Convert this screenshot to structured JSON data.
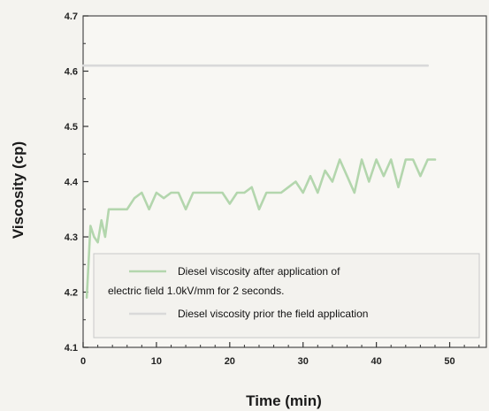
{
  "chart_data": {
    "type": "line",
    "xlabel": "Time (min)",
    "ylabel": "Viscosity (cp)",
    "xlim": [
      0,
      55
    ],
    "ylim": [
      4.1,
      4.7
    ],
    "xticks": [
      0,
      10,
      20,
      30,
      40,
      50
    ],
    "yticks": [
      4.1,
      4.2,
      4.3,
      4.4,
      4.5,
      4.6,
      4.7
    ],
    "xtick_labels": [
      "0",
      "10",
      "20",
      "30",
      "40",
      "50"
    ],
    "ytick_labels": [
      "4.1",
      "4.2",
      "4.3",
      "4.4",
      "4.5",
      "4.6",
      "4.7"
    ],
    "grid": false,
    "legend_position": "bottom-left",
    "series": [
      {
        "name": "Diesel viscosity after application of electric field 1.0kV/mm for 2 seconds",
        "legend_lines": [
          "Diesel viscosity after application of",
          "electric field 1.0kV/mm for 2 seconds."
        ],
        "color": "#b3d6ad",
        "x": [
          0.5,
          1,
          1.5,
          2,
          2.5,
          3,
          3.5,
          4,
          5,
          6,
          7,
          8,
          9,
          10,
          11,
          12,
          13,
          14,
          15,
          16,
          17,
          18,
          19,
          20,
          21,
          22,
          23,
          24,
          25,
          26,
          27,
          28,
          29,
          30,
          31,
          32,
          33,
          34,
          35,
          36,
          37,
          38,
          39,
          40,
          41,
          42,
          43,
          44,
          45,
          46,
          47,
          48
        ],
        "y": [
          4.19,
          4.32,
          4.3,
          4.29,
          4.33,
          4.3,
          4.35,
          4.35,
          4.35,
          4.35,
          4.37,
          4.38,
          4.35,
          4.38,
          4.37,
          4.38,
          4.38,
          4.35,
          4.38,
          4.38,
          4.38,
          4.38,
          4.38,
          4.36,
          4.38,
          4.38,
          4.39,
          4.35,
          4.38,
          4.38,
          4.38,
          4.39,
          4.4,
          4.38,
          4.41,
          4.38,
          4.42,
          4.4,
          4.44,
          4.41,
          4.38,
          4.44,
          4.4,
          4.44,
          4.41,
          4.44,
          4.39,
          4.44,
          4.44,
          4.41,
          4.44,
          4.44
        ]
      },
      {
        "name": "Diesel viscosity prior the field application",
        "legend_lines": [
          "Diesel viscosity prior the field application"
        ],
        "color": "#d9d9d9",
        "x": [
          0,
          47
        ],
        "y": [
          4.61,
          4.61
        ]
      }
    ]
  }
}
